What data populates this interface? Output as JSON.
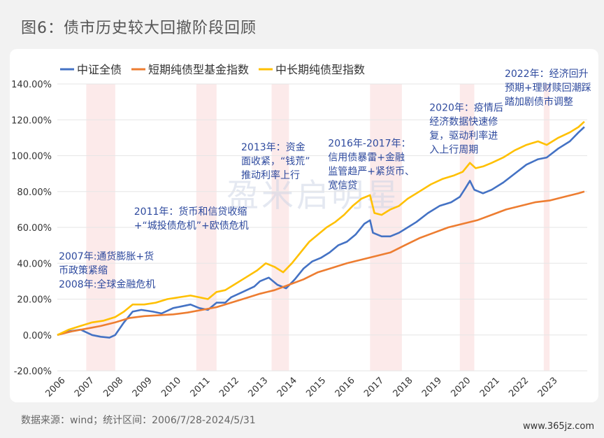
{
  "figure_title": "图6：债市历史较大回撤阶段回顾",
  "source": "数据来源：wind；统计区间：2006/7/28-2024/5/31",
  "site": "www.365jz.com",
  "watermark": "盈米启明星",
  "chart_data": {
    "type": "line",
    "title": "",
    "xlabel": "",
    "ylabel": "",
    "ylim": [
      -20,
      140
    ],
    "xlim": [
      2006,
      2024.3
    ],
    "yticks": [
      "140.00%",
      "120.00%",
      "100.00%",
      "80.00%",
      "60.00%",
      "40.00%",
      "20.00%",
      "0.00%",
      "-20.00%"
    ],
    "ytick_values": [
      140,
      120,
      100,
      80,
      60,
      40,
      20,
      0,
      -20
    ],
    "xticks": [
      "2006",
      "2007",
      "2008",
      "2009",
      "2010",
      "2011",
      "2012",
      "2013",
      "2014",
      "2015",
      "2016",
      "2017",
      "2018",
      "2019",
      "2020",
      "2021",
      "2022",
      "2023"
    ],
    "legend_position": "top-left",
    "series": [
      {
        "name": "中证全债",
        "color": "#4472c4",
        "points": [
          [
            2006.0,
            0
          ],
          [
            2006.4,
            2
          ],
          [
            2006.8,
            3
          ],
          [
            2007.2,
            0
          ],
          [
            2007.5,
            -1
          ],
          [
            2007.8,
            -1.5
          ],
          [
            2008.0,
            0
          ],
          [
            2008.3,
            7
          ],
          [
            2008.6,
            13
          ],
          [
            2008.9,
            14
          ],
          [
            2009.3,
            13
          ],
          [
            2009.6,
            12
          ],
          [
            2010.0,
            15
          ],
          [
            2010.3,
            16
          ],
          [
            2010.6,
            17
          ],
          [
            2010.9,
            15
          ],
          [
            2011.2,
            14
          ],
          [
            2011.5,
            18
          ],
          [
            2011.8,
            18
          ],
          [
            2012.0,
            21
          ],
          [
            2012.4,
            24
          ],
          [
            2012.8,
            27
          ],
          [
            2013.0,
            30
          ],
          [
            2013.3,
            32
          ],
          [
            2013.6,
            28
          ],
          [
            2013.9,
            26
          ],
          [
            2014.2,
            31
          ],
          [
            2014.5,
            37
          ],
          [
            2014.8,
            41
          ],
          [
            2015.1,
            43
          ],
          [
            2015.4,
            46
          ],
          [
            2015.7,
            50
          ],
          [
            2016.0,
            52
          ],
          [
            2016.3,
            56
          ],
          [
            2016.6,
            62
          ],
          [
            2016.8,
            64
          ],
          [
            2016.9,
            57
          ],
          [
            2017.2,
            55
          ],
          [
            2017.5,
            55
          ],
          [
            2017.8,
            57
          ],
          [
            2018.0,
            59
          ],
          [
            2018.4,
            63
          ],
          [
            2018.8,
            68
          ],
          [
            2019.2,
            72
          ],
          [
            2019.6,
            74
          ],
          [
            2019.9,
            77
          ],
          [
            2020.1,
            82
          ],
          [
            2020.25,
            86
          ],
          [
            2020.4,
            81
          ],
          [
            2020.7,
            79
          ],
          [
            2021.0,
            81
          ],
          [
            2021.4,
            85
          ],
          [
            2021.8,
            90
          ],
          [
            2022.2,
            95
          ],
          [
            2022.6,
            98
          ],
          [
            2022.9,
            99
          ],
          [
            2023.3,
            104
          ],
          [
            2023.7,
            108
          ],
          [
            2024.0,
            113
          ],
          [
            2024.2,
            116
          ]
        ]
      },
      {
        "name": "短期纯债型基金指数",
        "color": "#ed7d31",
        "points": [
          [
            2006.0,
            0
          ],
          [
            2006.5,
            2
          ],
          [
            2007.0,
            3.5
          ],
          [
            2007.5,
            5
          ],
          [
            2008.0,
            7
          ],
          [
            2008.5,
            9.5
          ],
          [
            2009.0,
            10.5
          ],
          [
            2009.5,
            11
          ],
          [
            2010.0,
            11.5
          ],
          [
            2010.5,
            12.5
          ],
          [
            2011.0,
            14
          ],
          [
            2011.5,
            15.5
          ],
          [
            2012.0,
            18
          ],
          [
            2012.5,
            20.5
          ],
          [
            2013.0,
            23
          ],
          [
            2013.5,
            25
          ],
          [
            2014.0,
            28
          ],
          [
            2014.5,
            31
          ],
          [
            2015.0,
            35
          ],
          [
            2015.5,
            37.5
          ],
          [
            2016.0,
            40
          ],
          [
            2016.5,
            42
          ],
          [
            2017.0,
            44
          ],
          [
            2017.5,
            46
          ],
          [
            2018.0,
            50
          ],
          [
            2018.5,
            54
          ],
          [
            2019.0,
            57
          ],
          [
            2019.5,
            60
          ],
          [
            2020.0,
            62
          ],
          [
            2020.5,
            64
          ],
          [
            2021.0,
            67
          ],
          [
            2021.5,
            70
          ],
          [
            2022.0,
            72
          ],
          [
            2022.5,
            74
          ],
          [
            2023.0,
            75
          ],
          [
            2023.5,
            77
          ],
          [
            2024.0,
            79
          ],
          [
            2024.2,
            80
          ]
        ]
      },
      {
        "name": "中长期纯债型指数",
        "color": "#ffc000",
        "points": [
          [
            2006.0,
            0
          ],
          [
            2006.4,
            3
          ],
          [
            2006.8,
            5
          ],
          [
            2007.2,
            7
          ],
          [
            2007.6,
            8
          ],
          [
            2008.0,
            10
          ],
          [
            2008.3,
            13
          ],
          [
            2008.6,
            17
          ],
          [
            2009.0,
            17
          ],
          [
            2009.4,
            18
          ],
          [
            2009.8,
            20
          ],
          [
            2010.2,
            21
          ],
          [
            2010.6,
            22
          ],
          [
            2010.9,
            21
          ],
          [
            2011.2,
            20
          ],
          [
            2011.5,
            24
          ],
          [
            2011.8,
            25
          ],
          [
            2012.1,
            28
          ],
          [
            2012.5,
            32
          ],
          [
            2012.9,
            36
          ],
          [
            2013.2,
            40
          ],
          [
            2013.5,
            38
          ],
          [
            2013.8,
            35
          ],
          [
            2014.1,
            40
          ],
          [
            2014.4,
            46
          ],
          [
            2014.7,
            52
          ],
          [
            2015.0,
            56
          ],
          [
            2015.3,
            60
          ],
          [
            2015.6,
            63
          ],
          [
            2015.9,
            67
          ],
          [
            2016.2,
            72
          ],
          [
            2016.5,
            76
          ],
          [
            2016.8,
            78
          ],
          [
            2016.95,
            68
          ],
          [
            2017.2,
            67
          ],
          [
            2017.5,
            70
          ],
          [
            2017.8,
            72
          ],
          [
            2018.1,
            76
          ],
          [
            2018.5,
            80
          ],
          [
            2018.9,
            84
          ],
          [
            2019.3,
            87
          ],
          [
            2019.7,
            89
          ],
          [
            2020.0,
            91
          ],
          [
            2020.25,
            96
          ],
          [
            2020.45,
            93
          ],
          [
            2020.7,
            94
          ],
          [
            2021.0,
            96
          ],
          [
            2021.4,
            99
          ],
          [
            2021.8,
            103
          ],
          [
            2022.2,
            106
          ],
          [
            2022.6,
            108
          ],
          [
            2022.9,
            106
          ],
          [
            2023.3,
            110
          ],
          [
            2023.7,
            113
          ],
          [
            2024.0,
            116
          ],
          [
            2024.2,
            119
          ]
        ]
      }
    ],
    "shaded_periods": [
      [
        2007.0,
        2008.0
      ],
      [
        2010.8,
        2011.5
      ],
      [
        2013.4,
        2014.0
      ],
      [
        2016.8,
        2017.9
      ],
      [
        2019.9,
        2020.4
      ],
      [
        2022.8,
        2023.0
      ]
    ],
    "annotations": [
      {
        "lines": [
          "2007年:通货膨胀+货",
          "币政策紧缩",
          "2008年:全球金融危机"
        ],
        "x": 2006.05,
        "y": 42
      },
      {
        "lines": [
          "2011年：货币和信贷收缩",
          "+“城投债危机”+欧债危机"
        ],
        "x": 2008.65,
        "y": 67
      },
      {
        "lines": [
          "2013年：资金",
          "面收紧，“钱荒”",
          "推动利率上行"
        ],
        "x": 2012.35,
        "y": 103
      },
      {
        "lines": [
          "2016年-2017年：",
          "信用债暴雷+金融",
          "监管趋严+紧货币、",
          "宽信贷"
        ],
        "x": 2015.35,
        "y": 105
      },
      {
        "lines": [
          "2020年：疫情后",
          "经济数据快速修",
          "复，驱动利率进",
          "入上行周期"
        ],
        "x": 2018.85,
        "y": 125
      },
      {
        "lines": [
          "2022年：经济回升",
          "预期+理财赎回潮踩",
          "踏加剧债市调整"
        ],
        "x": 2021.45,
        "y": 144
      }
    ]
  }
}
